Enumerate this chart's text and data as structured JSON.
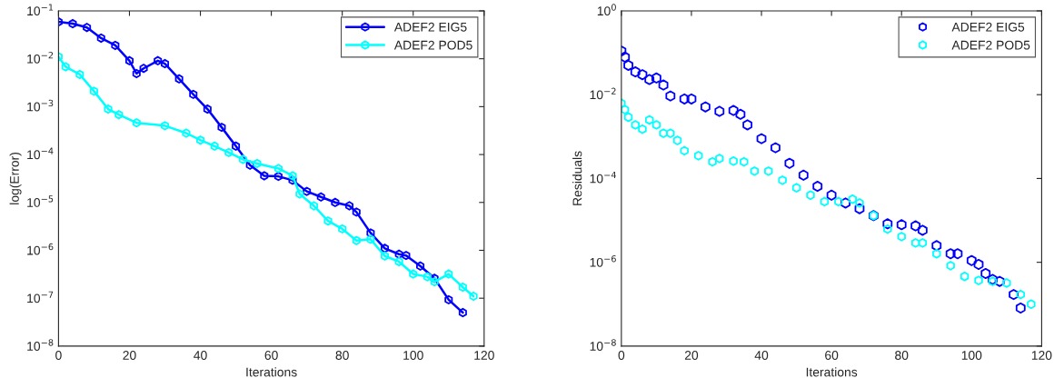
{
  "chart_data": [
    {
      "type": "line",
      "xlabel": "Iterations",
      "ylabel": "log(Error)",
      "log": "y",
      "grid": false,
      "legend": "top right",
      "marker": "star",
      "line_style": "solid",
      "xlim": [
        0,
        120
      ],
      "xticks": [
        0,
        20,
        40,
        60,
        80,
        100,
        120
      ],
      "ylim": [
        1e-08,
        0.1
      ],
      "yticks": [
        {
          "value": 1e-08,
          "label": "10$^{−8}$"
        },
        {
          "value": 1e-07,
          "label": "10$^{−7}$"
        },
        {
          "value": 1e-06,
          "label": "10$^{−6}$"
        },
        {
          "value": 1e-05,
          "label": "10$^{−5}$"
        },
        {
          "value": 0.0001,
          "label": "10$^{−4}$"
        },
        {
          "value": 0.001,
          "label": "10$^{−3}$"
        },
        {
          "value": 0.01,
          "label": "10$^{−2}$"
        },
        {
          "value": 0.1,
          "label": "10$^{−1}$"
        }
      ],
      "series": [
        {
          "name": "ADEF2 EIG5",
          "color": "#0000ff",
          "x": [
            0,
            4,
            8,
            12,
            16,
            20,
            22,
            24,
            28,
            30,
            34,
            38,
            42,
            46,
            50,
            54,
            58,
            62,
            66,
            70,
            74,
            78,
            82,
            84,
            88,
            92,
            96,
            98,
            102,
            106,
            110,
            114
          ],
          "values": [
            0.059,
            0.054,
            0.045,
            0.027,
            0.019,
            0.0091,
            0.0049,
            0.0063,
            0.0091,
            0.0079,
            0.0038,
            0.0018,
            0.00089,
            0.00037,
            0.00015,
            6e-05,
            3.6e-05,
            3.5e-05,
            2.9e-05,
            1.7e-05,
            1.3e-05,
            1e-05,
            8.5e-06,
            6.3e-06,
            2.3e-06,
            1.1e-06,
            8.3e-07,
            7.8e-07,
            4.7e-07,
            2.6e-07,
            9.3e-08,
            5e-08
          ]
        },
        {
          "name": "ADEF2 POD5",
          "color": "#00ffff",
          "x": [
            0,
            2,
            6,
            10,
            14,
            17,
            22,
            30,
            36,
            40,
            44,
            48,
            52,
            56,
            62,
            66,
            68,
            72,
            76,
            80,
            84,
            88,
            92,
            96,
            100,
            104,
            106,
            110,
            114,
            117
          ],
          "values": [
            0.011,
            0.0068,
            0.0047,
            0.0021,
            0.00089,
            0.00068,
            0.00046,
            0.0004,
            0.00028,
            0.0002,
            0.00015,
            0.00011,
            7.9e-05,
            6.5e-05,
            5.1e-05,
            3.6e-05,
            1.5e-05,
            8.5e-06,
            4.1e-06,
            2.8e-06,
            1.6e-06,
            1.7e-06,
            7.6e-07,
            5.8e-07,
            3.2e-07,
            2.8e-07,
            2.2e-07,
            3.2e-07,
            1.7e-07,
            1.1e-07
          ]
        }
      ]
    },
    {
      "type": "scatter",
      "xlabel": "Iterations",
      "ylabel": "Residuals",
      "log": "y",
      "grid": false,
      "legend": "top right",
      "marker": "star",
      "xlim": [
        0,
        120
      ],
      "xticks": [
        0,
        20,
        40,
        60,
        80,
        100,
        120
      ],
      "ylim": [
        1e-08,
        1
      ],
      "yticks": [
        {
          "value": 1e-08,
          "label": "10$^{−8}$"
        },
        {
          "value": 1e-06,
          "label": "10$^{−6}$"
        },
        {
          "value": 0.0001,
          "label": "10$^{−4}$"
        },
        {
          "value": 0.01,
          "label": "10$^{−2}$"
        },
        {
          "value": 1,
          "label": "10$^{0}$"
        }
      ],
      "series": [
        {
          "name": "ADEF2 EIG5",
          "color": "#0000ff",
          "x": [
            0,
            1,
            2,
            4,
            6,
            8,
            10,
            12,
            14,
            18,
            20,
            24,
            28,
            32,
            34,
            36,
            40,
            44,
            48,
            52,
            56,
            60,
            64,
            68,
            72,
            76,
            80,
            84,
            86,
            90,
            94,
            96,
            100,
            102,
            104,
            106,
            108,
            112,
            114
          ],
          "values": [
            0.11,
            0.079,
            0.05,
            0.035,
            0.03,
            0.023,
            0.025,
            0.017,
            0.0093,
            0.0079,
            0.0079,
            0.0051,
            0.004,
            0.0042,
            0.0034,
            0.0019,
            0.00089,
            0.00054,
            0.00023,
            0.00012,
            6.5e-05,
            4e-05,
            2.6e-05,
            1.9e-05,
            1.3e-05,
            8.3e-06,
            7.9e-06,
            7.4e-06,
            5.8e-06,
            2.5e-06,
            1.6e-06,
            1.6e-06,
            1.1e-06,
            8.9e-07,
            5.4e-07,
            3.9e-07,
            3.5e-07,
            1.7e-07,
            8.1e-08
          ]
        },
        {
          "name": "ADEF2 POD5",
          "color": "#00ffff",
          "x": [
            0,
            1,
            2,
            4,
            6,
            8,
            10,
            12,
            14,
            16,
            18,
            22,
            26,
            28,
            32,
            35,
            38,
            42,
            46,
            50,
            54,
            58,
            62,
            66,
            68,
            72,
            76,
            80,
            84,
            86,
            90,
            94,
            98,
            102,
            106,
            110,
            114,
            117
          ],
          "values": [
            0.0062,
            0.0044,
            0.0029,
            0.0019,
            0.0015,
            0.0025,
            0.0019,
            0.0012,
            0.0012,
            0.00081,
            0.00046,
            0.00035,
            0.00025,
            0.0003,
            0.00026,
            0.00025,
            0.00015,
            0.00015,
            9.1e-05,
            6e-05,
            4e-05,
            2.8e-05,
            2.8e-05,
            3.2e-05,
            2.6e-05,
            1.3e-05,
            6.2e-06,
            4.1e-06,
            2.9e-06,
            2.9e-06,
            1.6e-06,
            8.3e-07,
            4.6e-07,
            3.7e-07,
            3.5e-07,
            3.2e-07,
            1.7e-07,
            1e-07
          ]
        }
      ]
    }
  ]
}
